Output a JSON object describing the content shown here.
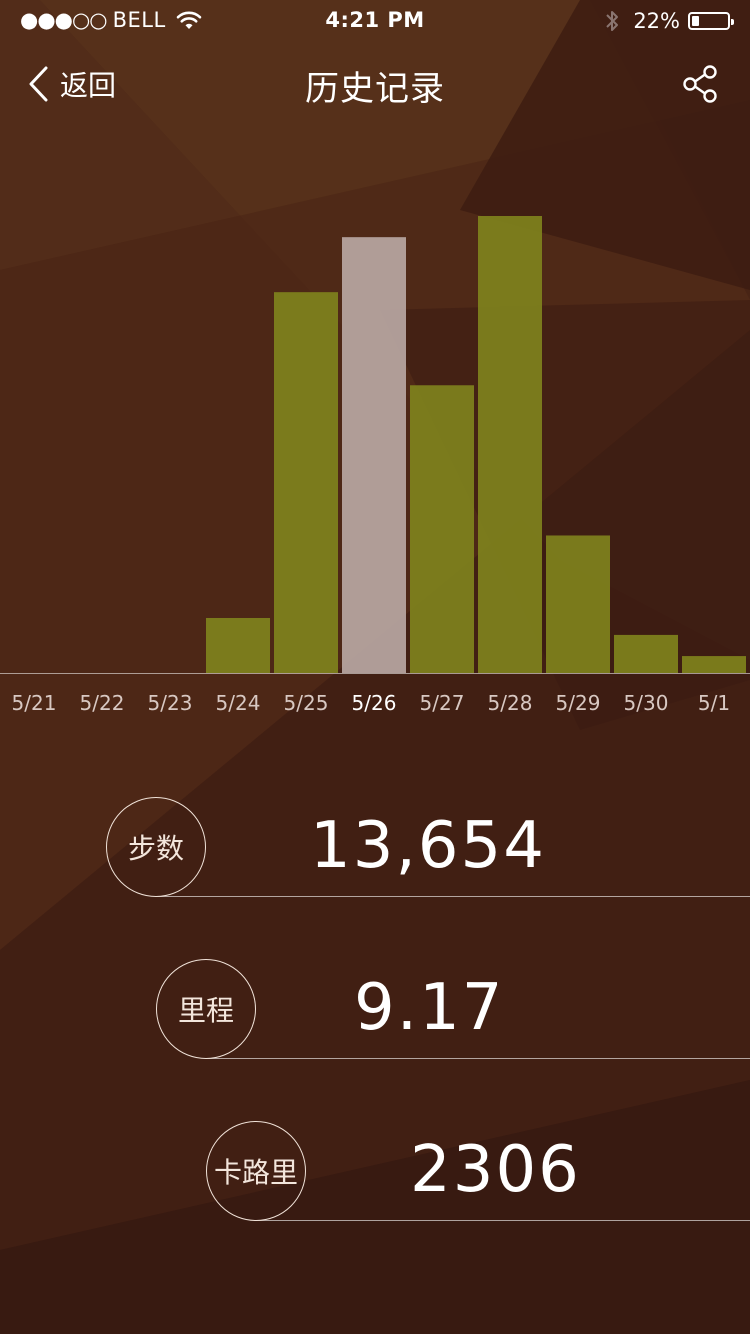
{
  "status_bar": {
    "signal": "●●●○○",
    "carrier": "BELL",
    "time": "4:21 PM",
    "battery_percent": "22%",
    "battery_level": 0.22
  },
  "nav": {
    "back_label": "返回",
    "title": "历史记录"
  },
  "chart_data": {
    "type": "bar",
    "categories": [
      "5/21",
      "5/22",
      "5/23",
      "5/24",
      "5/25",
      "5/26",
      "5/27",
      "5/28",
      "5/29",
      "5/30",
      "5/1"
    ],
    "values": [
      0,
      0,
      0,
      1.3,
      9.0,
      10.3,
      6.8,
      10.8,
      3.25,
      0.9,
      0.4
    ],
    "selected_index": 5,
    "bar_color": "#7d801c",
    "selected_color": "#b8a7a3",
    "title": "",
    "xlabel": "",
    "ylabel": ""
  },
  "stats": {
    "steps_label": "步数",
    "steps_value": "13,654",
    "distance_label": "里程",
    "distance_value": "9.17",
    "calories_label": "卡路里",
    "calories_value": "2306"
  },
  "colors": {
    "background": "#3a1b12",
    "accent": "#7d801c"
  }
}
